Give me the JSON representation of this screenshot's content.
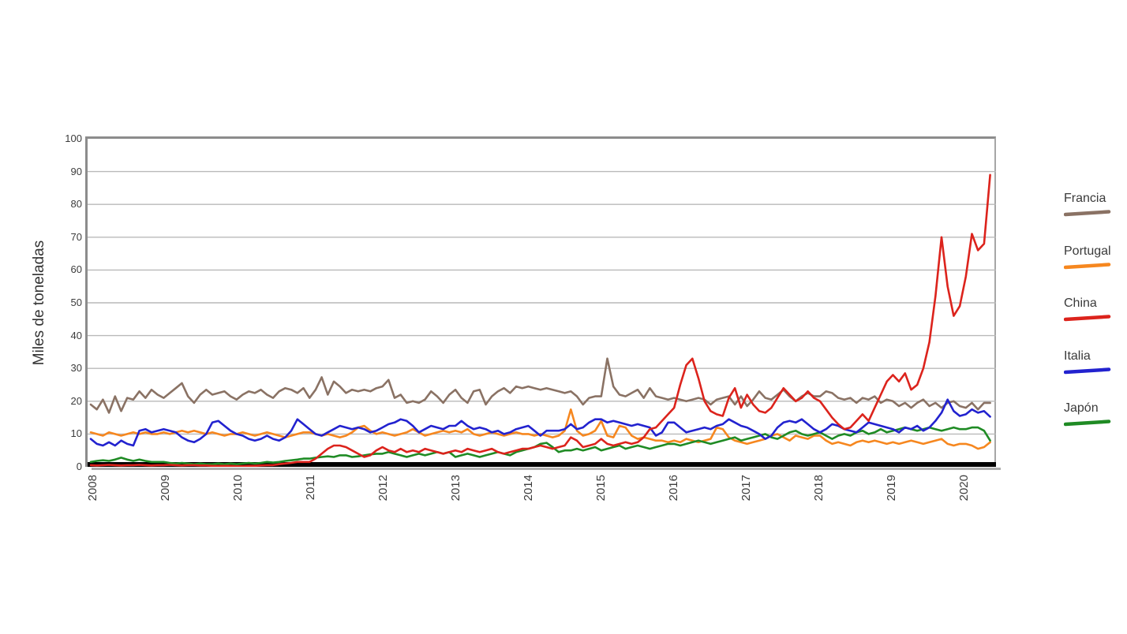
{
  "axis": {
    "ylabel": "Miles de toneladas",
    "yticks": [
      0,
      10,
      20,
      30,
      40,
      50,
      60,
      70,
      80,
      90,
      100
    ],
    "year_labels": [
      "2008",
      "2009",
      "2010",
      "2011",
      "2012",
      "2013",
      "2014",
      "2015",
      "2016",
      "2017",
      "2018",
      "2019",
      "2020"
    ]
  },
  "colors": {
    "grid": "#b9b9b9",
    "axis_bar": "#000000",
    "frame": "#8c8c8c",
    "text": "#3c3c3c"
  },
  "chart_data": {
    "type": "line",
    "title": "",
    "xlabel": "",
    "ylabel": "Miles de toneladas",
    "ylim": [
      0,
      100
    ],
    "grid": "horizontal",
    "legend_position": "right",
    "x_unit": "monthly",
    "x_range": "2008-01 to 2020-05",
    "x_tick_years": [
      2008,
      2009,
      2010,
      2011,
      2012,
      2013,
      2014,
      2015,
      2016,
      2017,
      2018,
      2019,
      2020
    ],
    "draw_order": [
      0,
      1,
      4,
      3,
      2
    ],
    "series": [
      {
        "name": "Francia",
        "color": "#8a7264",
        "values": [
          19,
          17.5,
          20.5,
          16.5,
          21.5,
          17,
          21,
          20.5,
          23,
          21,
          23.5,
          22,
          21,
          22.5,
          24,
          25.5,
          21.5,
          19.5,
          22,
          23.5,
          22,
          22.5,
          23,
          21.5,
          20.5,
          22,
          23,
          22.5,
          23.5,
          22,
          21,
          23,
          24,
          23.5,
          22.5,
          24,
          21,
          23.5,
          27.3,
          22,
          26,
          24.5,
          22.5,
          23.5,
          23,
          23.5,
          23,
          24,
          24.5,
          26.5,
          21,
          22,
          19.5,
          20,
          19.5,
          20.5,
          23,
          21.5,
          19.5,
          22,
          23.5,
          21,
          19.5,
          23,
          23.5,
          19,
          21.5,
          23,
          24,
          22.5,
          24.5,
          24,
          24.5,
          24,
          23.5,
          24,
          23.5,
          23,
          22.5,
          23,
          21.5,
          19,
          21,
          21.5,
          21.5,
          33,
          24.5,
          22,
          21.5,
          22.5,
          23.5,
          21,
          24,
          21.5,
          21,
          20.5,
          21,
          20.5,
          20,
          20.5,
          21,
          20.5,
          19,
          20.5,
          21,
          21.5,
          19,
          21.5,
          18.5,
          20.5,
          23,
          21,
          20.5,
          22,
          23.5,
          21.5,
          20,
          21.5,
          22.5,
          21.5,
          21.5,
          23,
          22.5,
          21,
          20.5,
          21,
          19.5,
          21,
          20.5,
          21.5,
          19.5,
          20.5,
          20,
          18.5,
          19.5,
          18,
          19.5,
          20.5,
          18.5,
          19.5,
          18,
          19.5,
          20,
          18.5,
          18,
          19.5,
          17.5,
          19.5,
          19.5
        ]
      },
      {
        "name": "Portugal",
        "color": "#f6871f",
        "values": [
          10.5,
          10,
          9.5,
          10.5,
          10,
          9.5,
          10,
          10.5,
          10,
          10.5,
          10,
          10,
          10.5,
          10,
          10.5,
          11,
          10.5,
          11,
          10.5,
          10,
          10.5,
          10,
          9.5,
          10,
          10,
          10.5,
          10,
          9.5,
          10,
          10.5,
          10,
          9.5,
          9,
          9.5,
          10,
          10.5,
          10.5,
          10,
          9.5,
          10,
          9.5,
          9,
          9.5,
          10.5,
          12,
          12.5,
          11,
          10,
          10.5,
          10,
          9.5,
          10,
          10.5,
          11.5,
          10.5,
          9.5,
          10,
          10.5,
          11,
          10.5,
          11,
          10.5,
          11.5,
          10,
          9.5,
          10,
          10.5,
          10,
          9.5,
          10,
          10.5,
          10,
          10,
          9.5,
          10,
          9.5,
          9,
          9.5,
          11,
          17.5,
          11,
          9.5,
          10,
          11,
          14,
          9.5,
          9,
          12.5,
          12,
          9.5,
          8.5,
          9,
          8.5,
          8,
          8,
          7.5,
          8,
          7.5,
          8.5,
          8,
          7.5,
          8,
          8.5,
          12,
          11.5,
          9,
          8,
          7.5,
          7,
          7.5,
          8,
          8.5,
          9.5,
          10,
          9,
          8,
          9.5,
          9,
          8.5,
          9.5,
          9.5,
          8,
          7,
          7.5,
          7,
          6.5,
          7.5,
          8,
          7.5,
          8,
          7.5,
          7,
          7.5,
          7,
          7.5,
          8,
          7.5,
          7,
          7.5,
          8,
          8.5,
          7,
          6.5,
          7,
          7,
          6.5,
          5.5,
          6,
          7.5
        ]
      },
      {
        "name": "China",
        "color": "#dc231c",
        "values": [
          0.5,
          0.4,
          0.5,
          0.6,
          0.5,
          0.4,
          0.5,
          0.5,
          0.6,
          0.5,
          0.4,
          0.5,
          0.5,
          0.6,
          0.5,
          0.4,
          0.5,
          0.5,
          0.4,
          0.4,
          0.3,
          0.3,
          0.3,
          0.3,
          0.2,
          0.2,
          0.3,
          0.3,
          0.4,
          0.5,
          0.5,
          0.8,
          1,
          1.2,
          1.5,
          1.5,
          1.5,
          2.5,
          4,
          5.5,
          6.5,
          6.5,
          6,
          5,
          4,
          3,
          3.5,
          5,
          6,
          5,
          4.5,
          5.5,
          4.5,
          5,
          4.5,
          5.5,
          5,
          4.5,
          4,
          4.5,
          5,
          4.5,
          5.5,
          5,
          4.5,
          5,
          5.5,
          4.5,
          4,
          4.5,
          5,
          5.5,
          5.5,
          6,
          6.5,
          6,
          5.5,
          6,
          6.5,
          9,
          8,
          6,
          6.5,
          7,
          8.5,
          7,
          6.5,
          7,
          7.5,
          7,
          7.5,
          9,
          11.5,
          12,
          14,
          16,
          18,
          25,
          31,
          33,
          27,
          20,
          17,
          16,
          15.5,
          21,
          24,
          18,
          22,
          19,
          17,
          16.5,
          18,
          21,
          24,
          22,
          20,
          21,
          23,
          21,
          20,
          17.5,
          15,
          13,
          11.5,
          12,
          14,
          16,
          14,
          18,
          22,
          26,
          28,
          26,
          28.5,
          23.5,
          25,
          30,
          38,
          52,
          70,
          55,
          46,
          49,
          58,
          71,
          66,
          68,
          89
        ]
      },
      {
        "name": "Italia",
        "color": "#2222cf",
        "values": [
          8.5,
          7,
          6.5,
          7.5,
          6.5,
          8,
          7,
          6.5,
          11,
          11.5,
          10.5,
          11,
          11.5,
          11,
          10.5,
          9,
          8,
          7.5,
          8.5,
          10,
          13.5,
          14,
          12.5,
          11,
          10,
          9.5,
          8.5,
          8,
          8.5,
          9.5,
          8.5,
          8,
          9,
          11,
          14.5,
          13,
          11.5,
          10,
          9.5,
          10.5,
          11.5,
          12.5,
          12,
          11.5,
          12,
          11.5,
          10.5,
          11,
          12,
          13,
          13.5,
          14.5,
          14,
          12.5,
          10.5,
          11.5,
          12.5,
          12,
          11.5,
          12.5,
          12.5,
          14,
          12.5,
          11.5,
          12,
          11.5,
          10.5,
          11,
          10,
          10.5,
          11.5,
          12,
          12.5,
          11,
          9.5,
          11,
          11,
          11,
          11.5,
          13,
          11.5,
          12,
          13.5,
          14.5,
          14.5,
          13.5,
          14,
          13.5,
          13,
          12.5,
          13,
          12.5,
          12,
          9.5,
          10.5,
          13.5,
          13.5,
          12,
          10.5,
          11,
          11.5,
          12,
          11.5,
          12.5,
          13,
          14.5,
          13.5,
          12.5,
          12,
          11,
          10,
          8.5,
          9.5,
          12,
          13.5,
          14,
          13.5,
          14.5,
          13,
          11.5,
          10.5,
          11.5,
          13,
          12.5,
          11.5,
          11,
          10.5,
          12,
          13.5,
          13,
          12.5,
          12,
          11.5,
          10.5,
          12,
          11.5,
          12.5,
          11,
          12,
          14,
          16.5,
          20.5,
          17,
          15.5,
          16,
          17.5,
          16.5,
          17,
          15.3
        ]
      },
      {
        "name": "Japón",
        "color": "#1f8b24",
        "values": [
          1.5,
          1.8,
          2,
          1.8,
          2.2,
          2.8,
          2.2,
          1.8,
          2.2,
          1.8,
          1.5,
          1.5,
          1.5,
          1.2,
          1,
          1.2,
          1,
          0.8,
          1,
          0.8,
          0.8,
          1,
          0.8,
          1,
          0.8,
          1,
          1.2,
          1,
          1.2,
          1.5,
          1.3,
          1.5,
          1.8,
          2,
          2.2,
          2.5,
          2.5,
          2.8,
          3,
          3.2,
          3,
          3.5,
          3.5,
          3,
          3.2,
          3.5,
          3.8,
          4,
          4,
          4.5,
          4,
          3.5,
          3,
          3.5,
          4,
          3.5,
          4,
          4.5,
          4,
          4.5,
          3,
          3.5,
          4,
          3.5,
          3,
          3.5,
          4,
          4.5,
          4,
          3.5,
          4.5,
          5,
          5.5,
          6,
          7,
          7.3,
          6,
          4.5,
          5,
          5,
          5.5,
          5,
          5.5,
          6,
          5,
          5.5,
          6,
          6.5,
          5.5,
          6,
          6.5,
          6,
          5.5,
          6,
          6.5,
          7,
          7,
          6.5,
          7,
          7.5,
          8,
          7.5,
          7,
          7.5,
          8,
          8.5,
          9,
          8,
          8.5,
          9,
          9.5,
          10,
          9,
          8.5,
          9.5,
          10.5,
          11,
          10,
          9.5,
          10,
          10.5,
          9.5,
          8.5,
          9.5,
          10,
          9.5,
          10.5,
          11,
          10,
          10.5,
          11.5,
          10.5,
          11,
          11.5,
          12,
          11.5,
          11,
          11.5,
          12,
          11.5,
          11,
          11.5,
          12,
          11.5,
          11.5,
          12,
          12,
          11,
          8
        ]
      }
    ]
  }
}
